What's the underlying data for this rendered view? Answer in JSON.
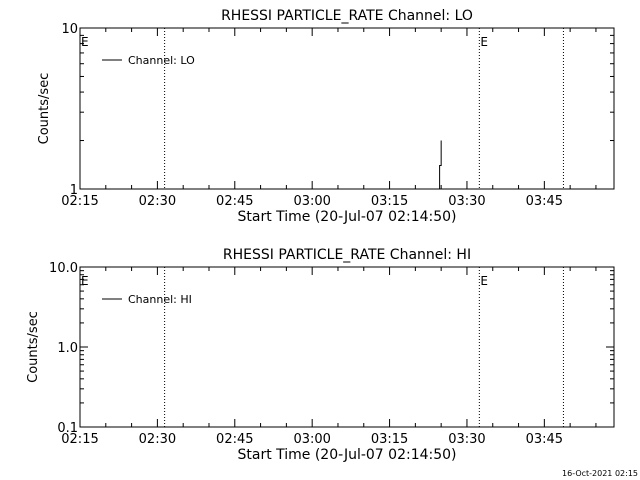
{
  "chart_data": [
    {
      "type": "line",
      "title": "RHESSI PARTICLE_RATE Channel: LO",
      "xlabel": "Start Time (20-Jul-07 02:14:50)",
      "ylabel": "Counts/sec",
      "x_ticks": [
        "02:15",
        "02:30",
        "02:45",
        "03:00",
        "03:15",
        "03:30",
        "03:45"
      ],
      "x_tick_minutes": [
        15,
        30,
        45,
        60,
        75,
        90,
        105
      ],
      "xlim_minutes": [
        15,
        118.5
      ],
      "y_scale": "log",
      "ylim": [
        1,
        10
      ],
      "y_ticks": [
        "1",
        "10"
      ],
      "y_tick_values": [
        1,
        10
      ],
      "legend": {
        "position": "top-left",
        "entries": [
          "Channel: LO"
        ]
      },
      "series": [
        {
          "name": "Channel: LO",
          "x_minutes": [
            84.7,
            84.7,
            85.0,
            85.0
          ],
          "values": [
            1,
            1.4,
            1.4,
            2.0
          ]
        }
      ],
      "markers": [
        {
          "minute": 31.4,
          "label": ""
        },
        {
          "minute": 92.4,
          "label": "E"
        },
        {
          "minute": 108.7,
          "label": ""
        }
      ],
      "edge_label": "E"
    },
    {
      "type": "line",
      "title": "RHESSI PARTICLE_RATE Channel: HI",
      "xlabel": "Start Time (20-Jul-07 02:14:50)",
      "ylabel": "Counts/sec",
      "x_ticks": [
        "02:15",
        "02:30",
        "02:45",
        "03:00",
        "03:15",
        "03:30",
        "03:45"
      ],
      "x_tick_minutes": [
        15,
        30,
        45,
        60,
        75,
        90,
        105
      ],
      "xlim_minutes": [
        15,
        118.5
      ],
      "y_scale": "log",
      "ylim": [
        0.1,
        10
      ],
      "y_ticks": [
        "0.1",
        "1.0",
        "10.0"
      ],
      "y_tick_values": [
        0.1,
        1,
        10
      ],
      "legend": {
        "position": "top-left",
        "entries": [
          "Channel: HI"
        ]
      },
      "series": [
        {
          "name": "Channel: HI",
          "x_minutes": [],
          "values": []
        }
      ],
      "markers": [
        {
          "minute": 31.4,
          "label": ""
        },
        {
          "minute": 92.4,
          "label": "E"
        },
        {
          "minute": 108.7,
          "label": ""
        }
      ],
      "edge_label": "E"
    }
  ],
  "footer": {
    "timestamp": "16-Oct-2021 02:15"
  }
}
